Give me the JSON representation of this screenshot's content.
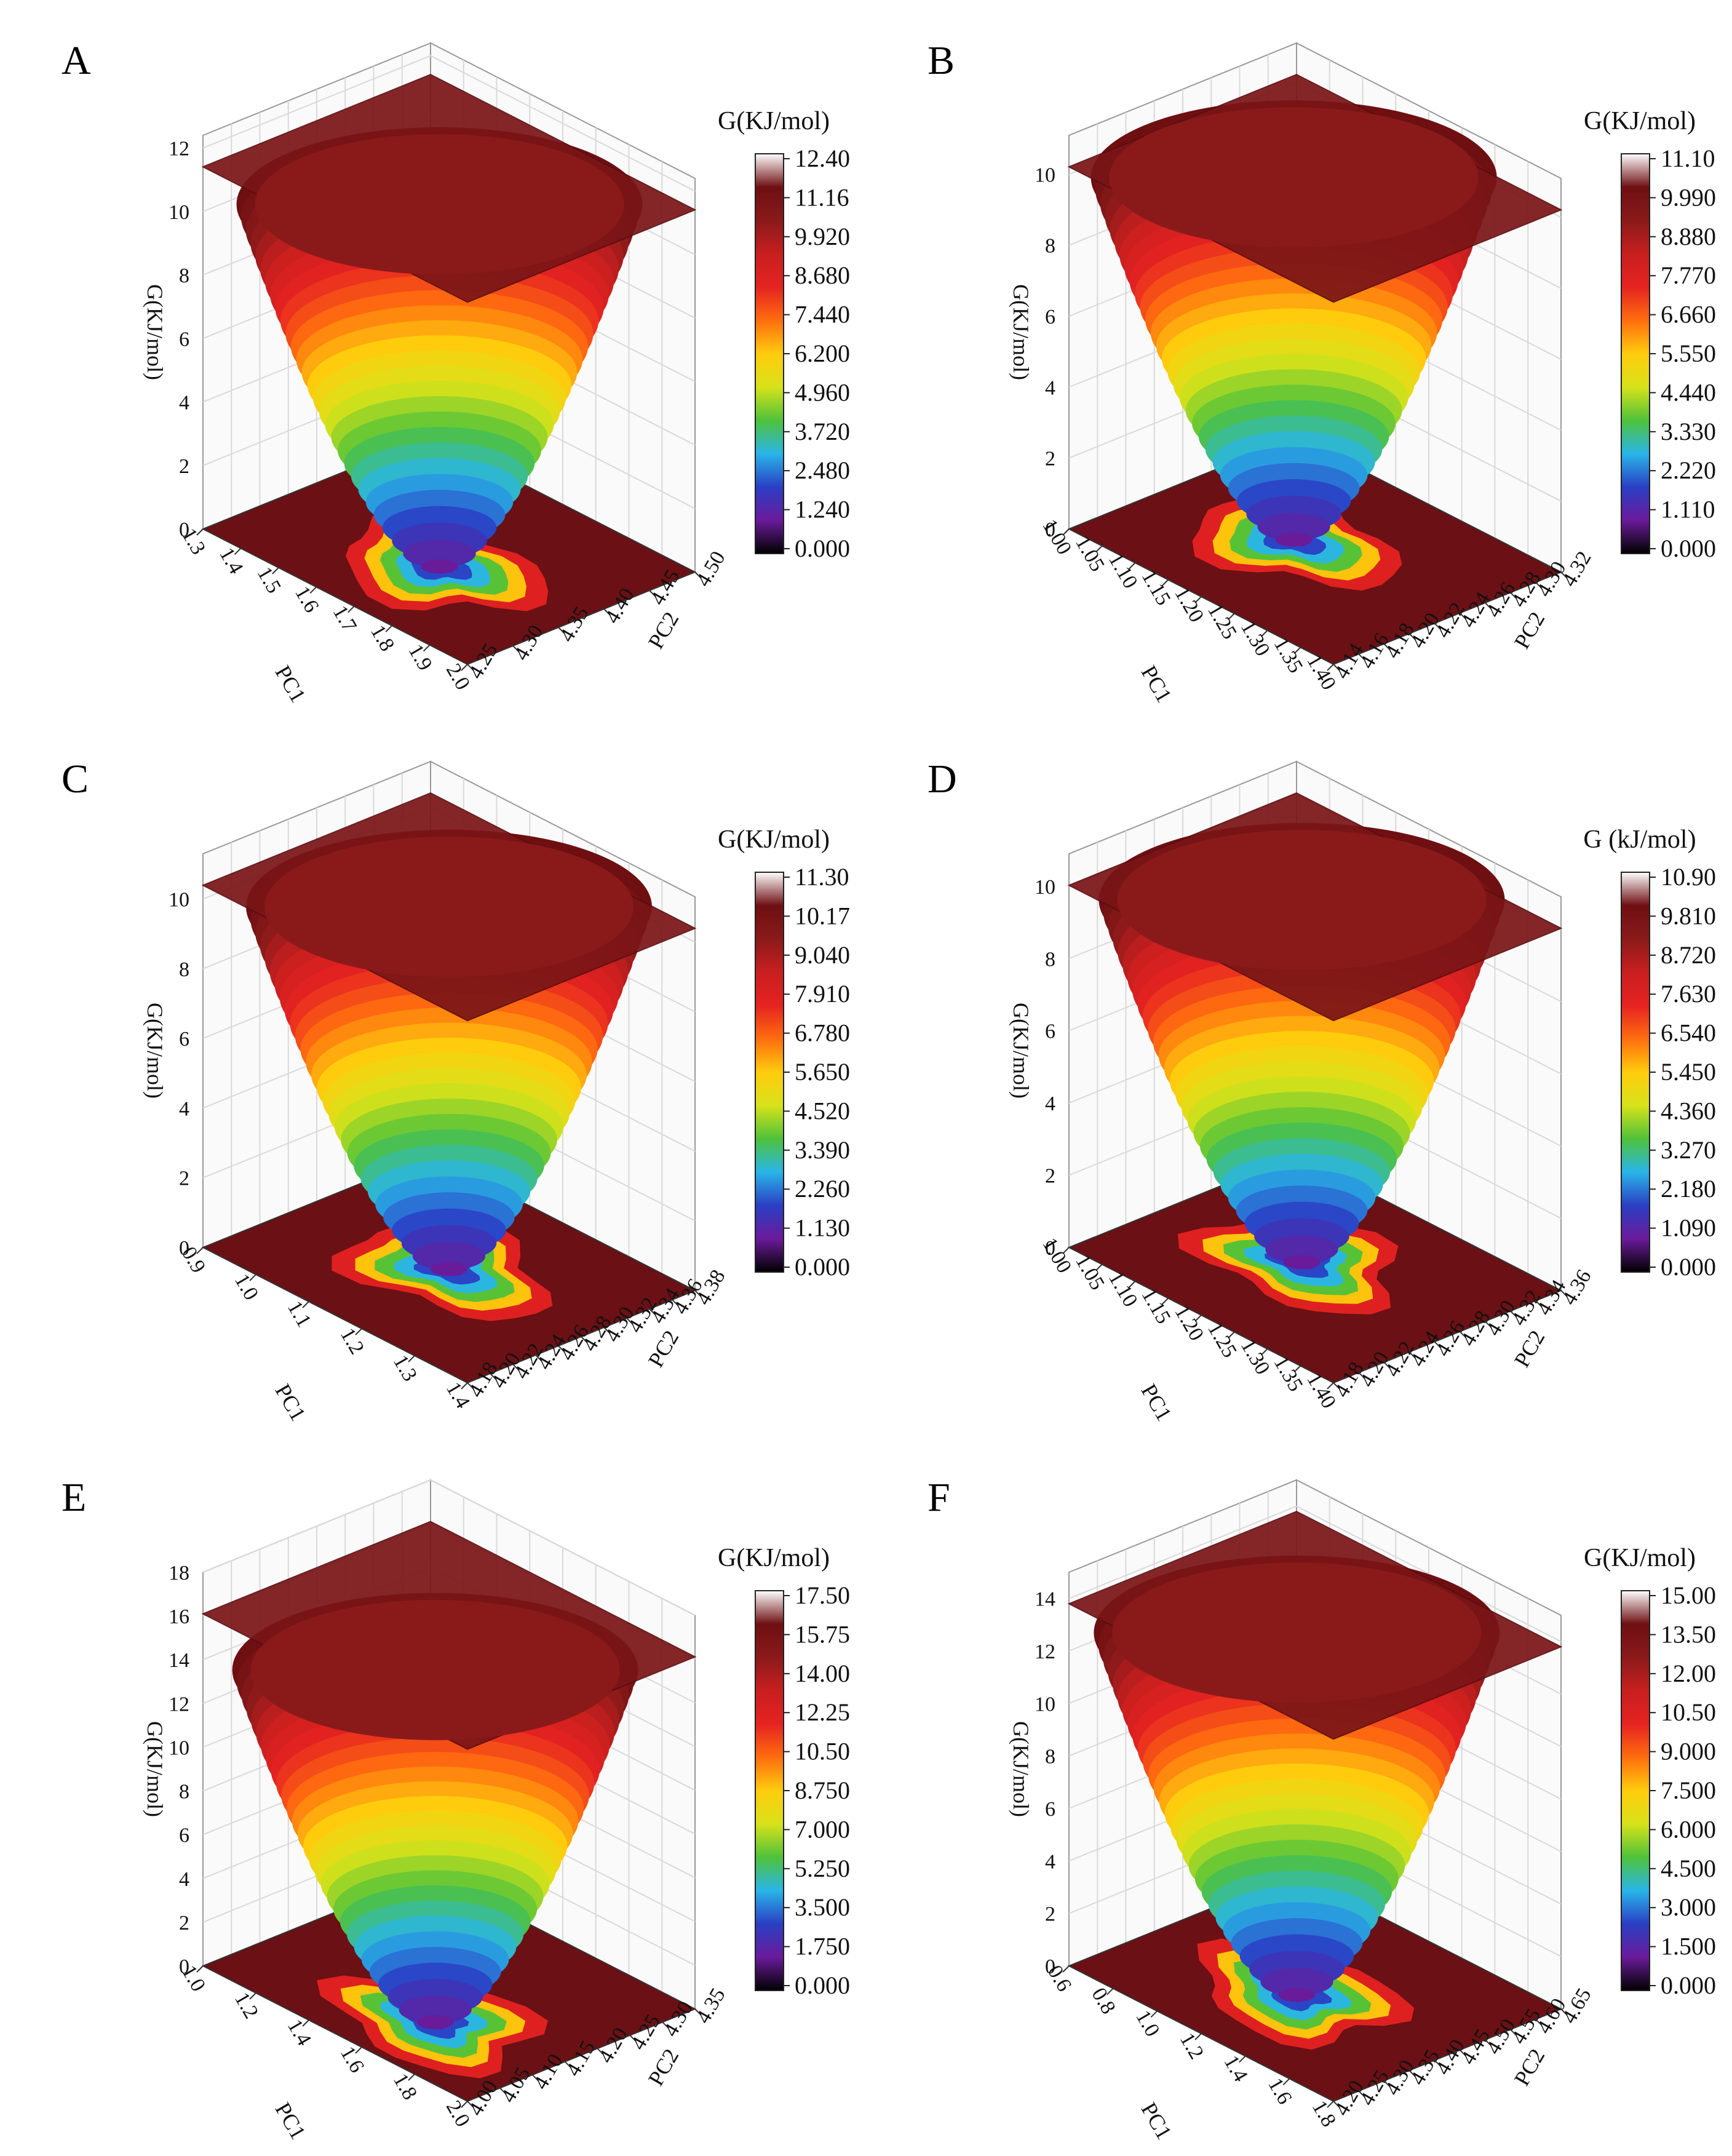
{
  "figure_title": "",
  "colors": {
    "ramp": [
      "#000000",
      "#6a1b9a",
      "#2a3fc4",
      "#29b5e8",
      "#4fc23a",
      "#d8e21a",
      "#ffcc0d",
      "#ff6d0f",
      "#e52321",
      "#c81f1f",
      "#8a1a1a",
      "#6e0f12",
      "#ffffff"
    ],
    "floor": "#6b1014",
    "grid": "#d9d9d9"
  },
  "chart_data": [
    {
      "type": "surface3d",
      "panel": "A",
      "title": "",
      "zlabel": "G(KJ/mol)",
      "xlabel": "PC1",
      "ylabel": "PC2",
      "colorbar_title": "G(KJ/mol)",
      "colorbar_ticks": [
        "12.40",
        "11.16",
        "9.920",
        "8.680",
        "7.440",
        "6.200",
        "4.960",
        "3.720",
        "2.480",
        "1.240",
        "0.000"
      ],
      "zlim": [
        0,
        12.4
      ],
      "zticks": [
        "0",
        "2",
        "4",
        "6",
        "8",
        "10",
        "12"
      ],
      "xticks": [
        "1.3",
        "1.4",
        "1.5",
        "1.6",
        "1.7",
        "1.8",
        "1.9",
        "2.0"
      ],
      "yticks": [
        "4.25",
        "4.30",
        "4.35",
        "4.40",
        "4.45",
        "4.50"
      ],
      "min_location": {
        "x": 0.55,
        "y": 0.4
      }
    },
    {
      "type": "surface3d",
      "panel": "B",
      "title": "",
      "zlabel": "G(KJ/mol)",
      "xlabel": "PC1",
      "ylabel": "PC2",
      "colorbar_title": "G(KJ/mol)",
      "colorbar_ticks": [
        "11.10",
        "9.990",
        "8.880",
        "7.770",
        "6.660",
        "5.550",
        "4.440",
        "3.330",
        "2.220",
        "1.110",
        "0.000"
      ],
      "zlim": [
        0,
        11.1
      ],
      "zticks": [
        "0",
        "2",
        "4",
        "6",
        "8",
        "10"
      ],
      "xticks": [
        "1.00",
        "1.05",
        "1.10",
        "1.15",
        "1.20",
        "1.25",
        "1.30",
        "1.35",
        "1.40"
      ],
      "yticks": [
        "4.14",
        "4.16",
        "4.18",
        "4.20",
        "4.22",
        "4.24",
        "4.26",
        "4.28",
        "4.30",
        "4.32"
      ],
      "min_location": {
        "x": 0.42,
        "y": 0.5
      }
    },
    {
      "type": "surface3d",
      "panel": "C",
      "title": "",
      "zlabel": "G(KJ/mol)",
      "xlabel": "PC1",
      "ylabel": "PC2",
      "colorbar_title": "G(KJ/mol)",
      "colorbar_ticks": [
        "11.30",
        "10.17",
        "9.040",
        "7.910",
        "6.780",
        "5.650",
        "4.520",
        "3.390",
        "2.260",
        "1.130",
        "0.000"
      ],
      "zlim": [
        0,
        11.3
      ],
      "zticks": [
        "0",
        "2",
        "4",
        "6",
        "8",
        "10"
      ],
      "xticks": [
        "0.9",
        "1.0",
        "1.1",
        "1.2",
        "1.3",
        "1.4"
      ],
      "yticks": [
        "4.18",
        "4.20",
        "4.22",
        "4.24",
        "4.26",
        "4.28",
        "4.30",
        "4.32",
        "4.34",
        "4.36",
        "4.38"
      ],
      "min_location": {
        "x": 0.5,
        "y": 0.5
      }
    },
    {
      "type": "surface3d",
      "panel": "D",
      "title": "",
      "zlabel": "G(KJ/mol)",
      "xlabel": "PC1",
      "ylabel": "PC2",
      "colorbar_title": "G (kJ/mol)",
      "colorbar_ticks": [
        "10.90",
        "9.810",
        "8.720",
        "7.630",
        "6.540",
        "5.450",
        "4.360",
        "3.270",
        "2.180",
        "1.090",
        "0.000"
      ],
      "zlim": [
        0,
        10.9
      ],
      "zticks": [
        "0",
        "2",
        "4",
        "6",
        "8",
        "10"
      ],
      "xticks": [
        "1.00",
        "1.05",
        "1.10",
        "1.15",
        "1.20",
        "1.25",
        "1.30",
        "1.35",
        "1.40"
      ],
      "yticks": [
        "4.18",
        "4.20",
        "4.22",
        "4.24",
        "4.26",
        "4.28",
        "4.30",
        "4.32",
        "4.34",
        "4.36"
      ],
      "min_location": {
        "x": 0.45,
        "y": 0.5
      }
    },
    {
      "type": "surface3d",
      "panel": "E",
      "title": "",
      "zlabel": "G(KJ/mol)",
      "xlabel": "PC1",
      "ylabel": "PC2",
      "colorbar_title": "G(KJ/mol)",
      "colorbar_ticks": [
        "17.50",
        "15.75",
        "14.00",
        "12.25",
        "10.50",
        "8.750",
        "7.000",
        "5.250",
        "3.500",
        "1.750",
        "0.000"
      ],
      "zlim": [
        0,
        17.5
      ],
      "zticks": [
        "0",
        "2",
        "4",
        "6",
        "8",
        "10",
        "12",
        "14",
        "16",
        "18"
      ],
      "xticks": [
        "1.0",
        "1.2",
        "1.4",
        "1.6",
        "1.8",
        "2.0"
      ],
      "yticks": [
        "4.00",
        "4.05",
        "4.10",
        "4.15",
        "4.20",
        "4.25",
        "4.30",
        "4.35"
      ],
      "min_location": {
        "x": 0.62,
        "y": 0.3
      }
    },
    {
      "type": "surface3d",
      "panel": "F",
      "title": "",
      "zlabel": "G(KJ/mol)",
      "xlabel": "PC1",
      "ylabel": "PC2",
      "colorbar_title": "G(KJ/mol)",
      "colorbar_ticks": [
        "15.00",
        "13.50",
        "12.00",
        "10.50",
        "9.000",
        "7.500",
        "6.000",
        "4.500",
        "3.000",
        "1.500",
        "0.000"
      ],
      "zlim": [
        0,
        15
      ],
      "zticks": [
        "0",
        "2",
        "4",
        "6",
        "8",
        "10",
        "12",
        "14"
      ],
      "xticks": [
        "0.6",
        "0.8",
        "1.0",
        "1.2",
        "1.4",
        "1.6",
        "1.8"
      ],
      "yticks": [
        "4.20",
        "4.25",
        "4.30",
        "4.35",
        "4.40",
        "4.45",
        "4.50",
        "4.55",
        "4.60",
        "4.65"
      ],
      "min_location": {
        "x": 0.5,
        "y": 0.42
      }
    }
  ]
}
